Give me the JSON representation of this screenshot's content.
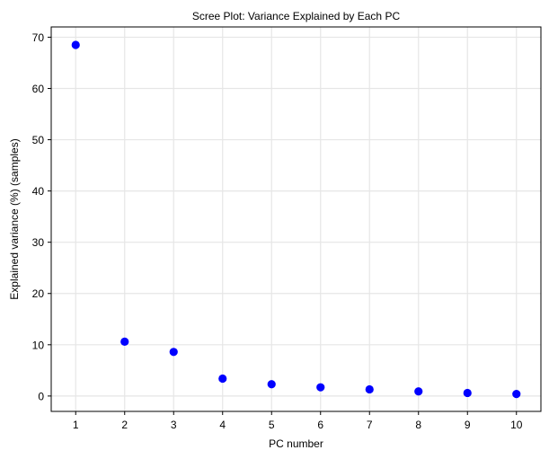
{
  "chart_data": {
    "type": "scatter",
    "title": "Scree Plot: Variance Explained by Each PC",
    "xlabel": "PC number",
    "ylabel": "Explained variance (%) (samples)",
    "x": [
      1,
      2,
      3,
      4,
      5,
      6,
      7,
      8,
      9,
      10
    ],
    "y": [
      68.5,
      10.6,
      8.6,
      3.4,
      2.3,
      1.7,
      1.3,
      0.9,
      0.6,
      0.4
    ],
    "xlim": [
      0.5,
      10.5
    ],
    "ylim": [
      -3.0,
      72.0
    ],
    "xticks": [
      1,
      2,
      3,
      4,
      5,
      6,
      7,
      8,
      9,
      10
    ],
    "yticks": [
      0,
      10,
      20,
      30,
      40,
      50,
      60,
      70
    ],
    "grid": true,
    "marker_color": "#0000ff",
    "grid_color": "#e6e6e6"
  }
}
